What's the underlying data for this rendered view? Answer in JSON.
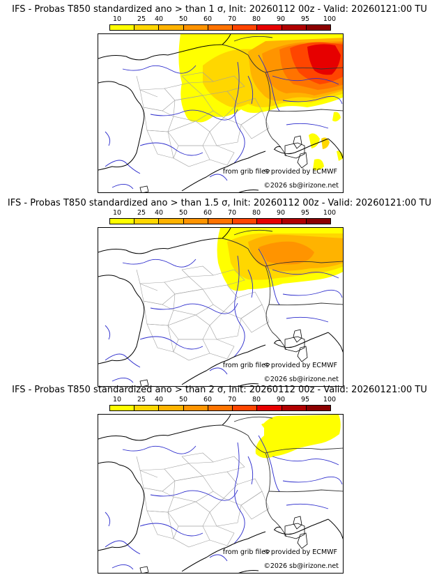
{
  "legend": {
    "ticks": [
      "10",
      "25",
      "40",
      "50",
      "60",
      "70",
      "80",
      "90",
      "95",
      "100"
    ],
    "colors": [
      "#ffff00",
      "#ffd700",
      "#ffb300",
      "#ff9400",
      "#ff7300",
      "#ff4500",
      "#e60000",
      "#b00000",
      "#8b0000",
      "#5c0000"
    ]
  },
  "map_colors": {
    "coast": "#000000",
    "rivers": "#2a2acc",
    "borders": "#333333",
    "departments": "#9a9a9a"
  },
  "panels": [
    {
      "title": "IFS - Probas T850  standardized ano > than 1 σ, Init: 20260112 00z - Valid: 20260121:00 TU",
      "source_credit": "from grib files provided by ECMWF",
      "copyright": "©2026 sb@irizone.net"
    },
    {
      "title": "IFS - Probas T850  standardized ano > than 1.5 σ, Init: 20260112 00z - Valid: 20260121:00 TU",
      "source_credit": "from grib files provided by ECMWF",
      "copyright": "©2026 sb@irizone.net"
    },
    {
      "title": "IFS - Probas T850  standardized ano > than 2 σ, Init: 20260112 00z - Valid: 20260121:00 TU",
      "source_credit": "from grib files provided by ECMWF",
      "copyright": "©2026 sb@irizone.net"
    }
  ]
}
